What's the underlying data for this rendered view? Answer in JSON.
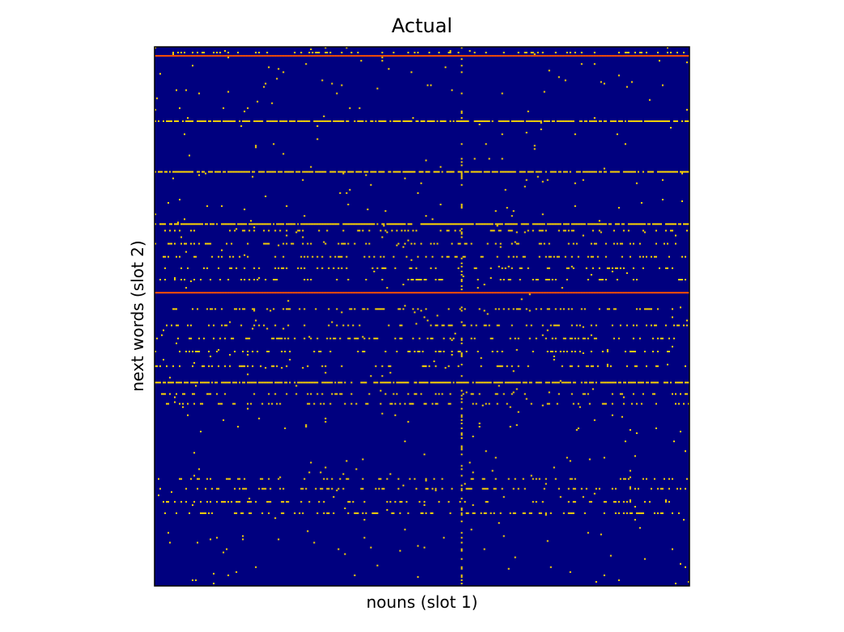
{
  "chart_data": {
    "type": "heatmap",
    "title": "Actual",
    "xlabel": "nouns (slot 1)",
    "ylabel": "next words (slot 2)",
    "colormap": "jet",
    "colors": {
      "background": "#00007f",
      "medium": "#ffd700",
      "high": "#ff5000"
    },
    "n_cols": 330,
    "n_rows": 330,
    "ticks_shown": false,
    "dense_rows": [
      {
        "row": 5,
        "level": "high"
      },
      {
        "row": 45,
        "level": "medium"
      },
      {
        "row": 76,
        "level": "medium"
      },
      {
        "row": 108,
        "level": "medium"
      },
      {
        "row": 150,
        "level": "high"
      },
      {
        "row": 205,
        "level": "medium"
      }
    ],
    "medium_density_rows": [
      3,
      112,
      120,
      128,
      135,
      142,
      160,
      170,
      178,
      186,
      195,
      212,
      218,
      264,
      270,
      278,
      285
    ],
    "dense_cols": [
      189
    ],
    "sparse_density": 0.004,
    "random_seed": 7
  }
}
